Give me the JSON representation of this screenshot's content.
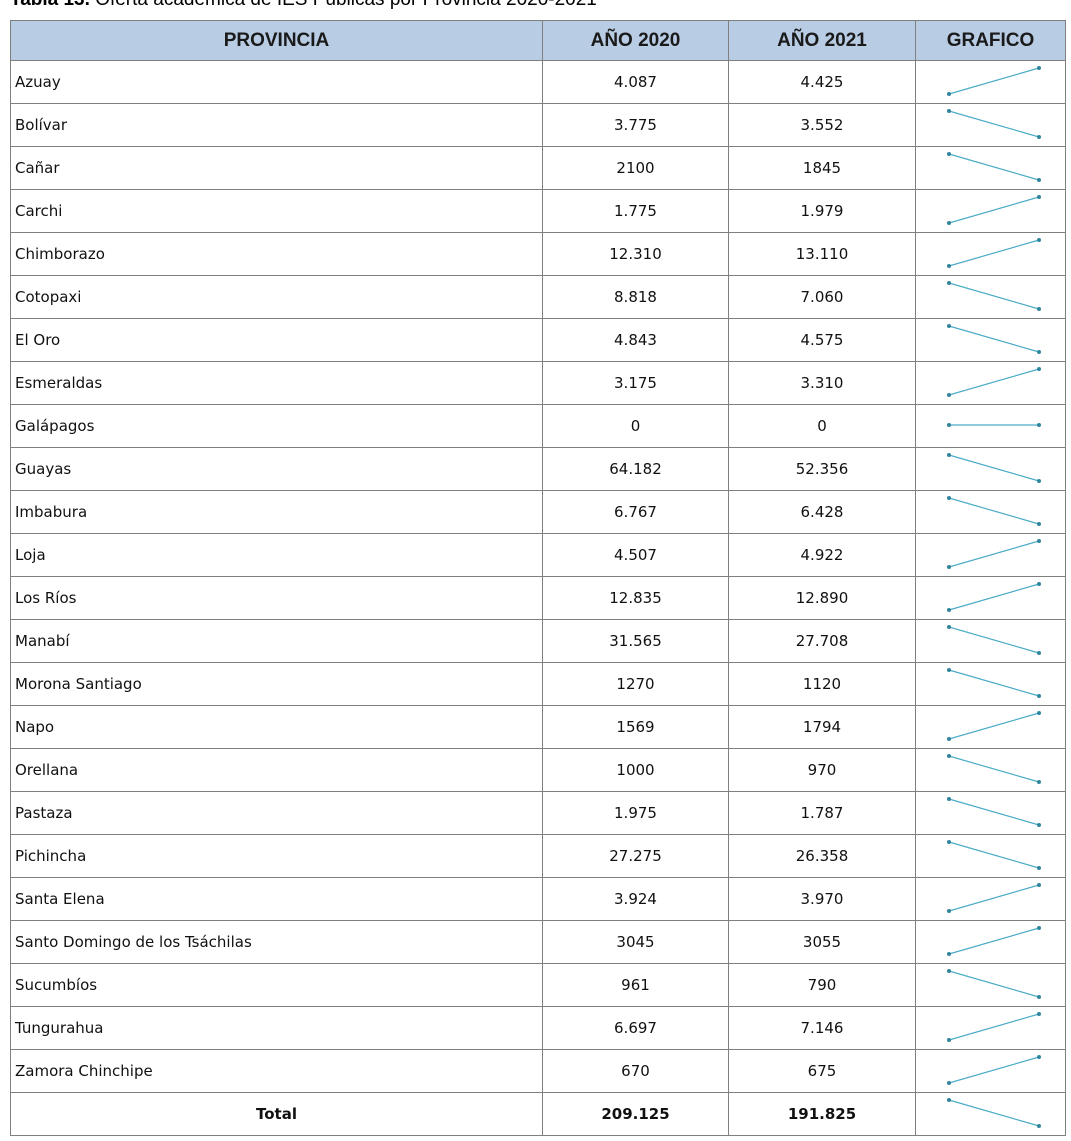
{
  "caption": {
    "label": "Tabla 13.",
    "text": "Oferta académica de IES Públicas por Provincia 2020-2021"
  },
  "table": {
    "header": [
      "PROVINCIA",
      "AÑO 2020",
      "AÑO 2021",
      "GRAFICO"
    ],
    "rows": [
      [
        "Azuay",
        "4.087",
        "4.425"
      ],
      [
        "Bolívar",
        "3.775",
        "3.552"
      ],
      [
        "Cañar",
        "2100",
        "1845"
      ],
      [
        "Carchi",
        "1.775",
        "1.979"
      ],
      [
        "Chimborazo",
        "12.310",
        "13.110"
      ],
      [
        "Cotopaxi",
        "8.818",
        "7.060"
      ],
      [
        "El Oro",
        "4.843",
        "4.575"
      ],
      [
        "Esmeraldas",
        "3.175",
        "3.310"
      ],
      [
        "Galápagos",
        "0",
        "0"
      ],
      [
        "Guayas",
        "64.182",
        "52.356"
      ],
      [
        "Imbabura",
        "6.767",
        "6.428"
      ],
      [
        "Loja",
        "4.507",
        "4.922"
      ],
      [
        "Los Ríos",
        "12.835",
        "12.890"
      ],
      [
        "Manabí",
        "31.565",
        "27.708"
      ],
      [
        "Morona Santiago",
        "1270",
        "1120"
      ],
      [
        "Napo",
        "1569",
        "1794"
      ],
      [
        "Orellana",
        "1000",
        "970"
      ],
      [
        "Pastaza",
        "1.975",
        "1.787"
      ],
      [
        "Pichincha",
        "27.275",
        "26.358"
      ],
      [
        "Santa Elena",
        "3.924",
        "3.970"
      ],
      [
        "Santo Domingo de los Tsáchilas",
        "3045",
        "3055"
      ],
      [
        "Sucumbíos",
        "961",
        "790"
      ],
      [
        "Tungurahua",
        "6.697",
        "7.146"
      ],
      [
        "Zamora Chinchipe",
        "670",
        "675"
      ]
    ],
    "total": [
      "Total",
      "209.125",
      "191.825"
    ]
  }
}
